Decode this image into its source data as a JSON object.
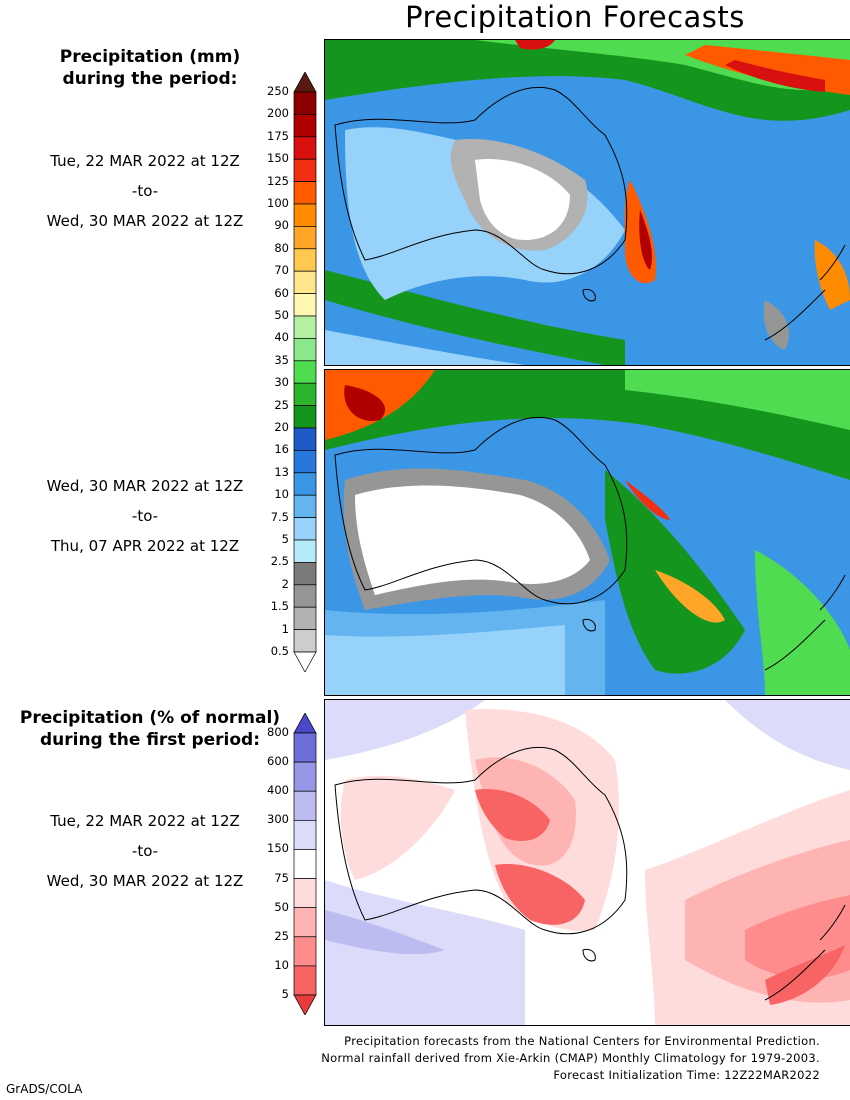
{
  "title": "Precipitation Forecasts",
  "mm_legend": {
    "heading_line1": "Precipitation (mm)",
    "heading_line2": "during the period:",
    "ticks": [
      "250",
      "200",
      "175",
      "150",
      "125",
      "100",
      "90",
      "80",
      "70",
      "60",
      "50",
      "40",
      "35",
      "30",
      "25",
      "20",
      "16",
      "13",
      "10",
      "7.5",
      "5",
      "2.5",
      "2",
      "1.5",
      "1",
      "0.5"
    ],
    "colors": [
      "#5a1a12",
      "#8b0000",
      "#b00000",
      "#d81010",
      "#f03010",
      "#ff5a00",
      "#ff8c00",
      "#ffa628",
      "#ffc850",
      "#ffe68c",
      "#fff8b0",
      "#b4f0a0",
      "#8ce88c",
      "#50dc50",
      "#2cb42c",
      "#14961e",
      "#1e5ac8",
      "#2878dc",
      "#3c96e6",
      "#64b4f0",
      "#96d2fa",
      "#b4ebfa",
      "#7a7a7a",
      "#969696",
      "#b2b2b2",
      "#cdcdcd",
      "#ffffff"
    ]
  },
  "period1": {
    "start": "Tue, 22 MAR 2022 at 12Z",
    "sep": "-to-",
    "end": "Wed, 30 MAR 2022 at 12Z"
  },
  "period2": {
    "start": "Wed, 30 MAR 2022 at 12Z",
    "sep": "-to-",
    "end": "Thu, 07 APR 2022 at 12Z"
  },
  "pct_legend": {
    "heading_line1": "Precipitation (% of normal)",
    "heading_line2": "during the first period:",
    "ticks": [
      "800",
      "600",
      "400",
      "300",
      "150",
      "75",
      "50",
      "25",
      "10",
      "5"
    ],
    "colors": [
      "#4848c8",
      "#6e6ed8",
      "#9696e6",
      "#bcbcf0",
      "#dcdcfa",
      "#ffffff",
      "#ffdcdc",
      "#ffb4b4",
      "#ff8c8c",
      "#f86464",
      "#e83c3c"
    ]
  },
  "period3": {
    "start": "Tue, 22 MAR 2022 at 12Z",
    "sep": "-to-",
    "end": "Wed, 30 MAR 2022 at 12Z"
  },
  "footer": {
    "line1": "Precipitation forecasts from the National Centers for Environmental Prediction.",
    "line2": "Normal rainfall derived from Xie-Arkin (CMAP) Monthly Climatology for 1979-2003.",
    "line3": "Forecast Initialization Time: 12Z22MAR2022"
  },
  "credit": "GrADS/COLA"
}
